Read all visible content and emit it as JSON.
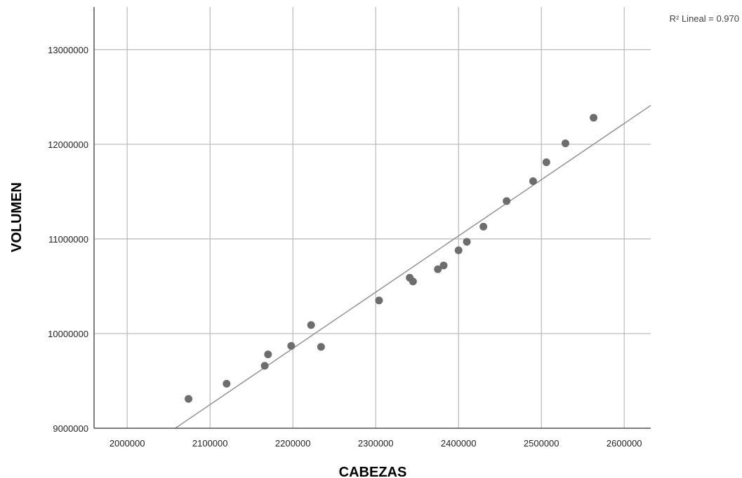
{
  "chart_data": {
    "type": "scatter",
    "title": "",
    "xlabel": "CABEZAS",
    "ylabel": "VOLUMEN",
    "xlim": [
      1960000,
      2632000
    ],
    "ylim": [
      9000000,
      13450000
    ],
    "x_ticks": [
      2000000,
      2100000,
      2200000,
      2300000,
      2400000,
      2500000,
      2600000
    ],
    "x_tick_labels": [
      "2000000",
      "2100000",
      "2200000",
      "2300000",
      "2400000",
      "2500000",
      "2600000"
    ],
    "y_ticks": [
      9000000,
      10000000,
      11000000,
      12000000,
      13000000
    ],
    "y_tick_labels": [
      "9000000",
      "10000000",
      "11000000",
      "12000000",
      "13000000"
    ],
    "grid": true,
    "fit_label": "R² Lineal = 0.970",
    "fit_line": {
      "x": [
        2058000,
        2632000
      ],
      "y": [
        9000000,
        12410000
      ]
    },
    "series": [
      {
        "points": [
          {
            "x": 2074000,
            "y": 9310000
          },
          {
            "x": 2120000,
            "y": 9470000
          },
          {
            "x": 2166000,
            "y": 9660000
          },
          {
            "x": 2170000,
            "y": 9780000
          },
          {
            "x": 2198000,
            "y": 9870000
          },
          {
            "x": 2222000,
            "y": 10090000
          },
          {
            "x": 2234000,
            "y": 9860000
          },
          {
            "x": 2304000,
            "y": 10350000
          },
          {
            "x": 2341000,
            "y": 10590000
          },
          {
            "x": 2345000,
            "y": 10550000
          },
          {
            "x": 2375000,
            "y": 10680000
          },
          {
            "x": 2382000,
            "y": 10720000
          },
          {
            "x": 2400000,
            "y": 10880000
          },
          {
            "x": 2410000,
            "y": 10970000
          },
          {
            "x": 2430000,
            "y": 11130000
          },
          {
            "x": 2458000,
            "y": 11400000
          },
          {
            "x": 2490000,
            "y": 11610000
          },
          {
            "x": 2506000,
            "y": 11810000
          },
          {
            "x": 2529000,
            "y": 12010000
          },
          {
            "x": 2563000,
            "y": 12280000
          }
        ]
      }
    ],
    "colors": {
      "points": "#6d6d6d",
      "fit_line": "#8c8c8c",
      "grid": "#b9b9b9",
      "axis": "#555555"
    }
  }
}
